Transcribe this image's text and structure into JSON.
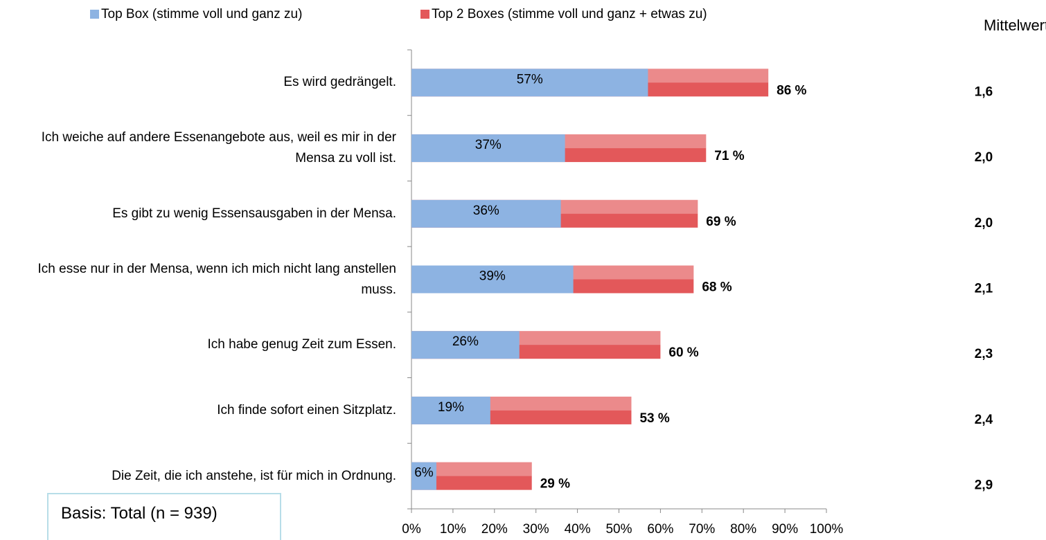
{
  "chart_data": {
    "type": "bar",
    "orientation": "horizontal",
    "categories": [
      "Es wird gedrängelt.",
      "Ich weiche auf andere Essenangebote aus, weil es mir in der Mensa zu voll ist.",
      "Es gibt zu wenig Essensausgaben in der Mensa.",
      "Ich esse nur in der Mensa, wenn ich mich nicht lang anstellen muss.",
      "Ich habe genug Zeit zum Essen.",
      "Ich finde sofort einen Sitzplatz.",
      "Die Zeit, die ich anstehe, ist für mich in Ordnung."
    ],
    "series": [
      {
        "name": "Top Box (stimme voll und ganz zu)",
        "color": "#8db3e2",
        "values": [
          57,
          37,
          36,
          39,
          26,
          19,
          6
        ],
        "value_labels": [
          "57%",
          "37%",
          "36%",
          "39%",
          "26%",
          "19%",
          "6%"
        ]
      },
      {
        "name": "Top 2 Boxes (stimme voll und ganz + etwas zu)",
        "color": "#e3585a",
        "values": [
          86,
          71,
          69,
          68,
          60,
          53,
          29
        ],
        "value_labels": [
          "86 %",
          "71 %",
          "69 %",
          "68 %",
          "60 %",
          "53 %",
          "29 %"
        ]
      }
    ],
    "xlim": [
      0,
      100
    ],
    "xticks": [
      {
        "value": 0,
        "label": "0%"
      },
      {
        "value": 10,
        "label": "10%"
      },
      {
        "value": 20,
        "label": "20%"
      },
      {
        "value": 30,
        "label": "30%"
      },
      {
        "value": 40,
        "label": "40%"
      },
      {
        "value": 50,
        "label": "50%"
      },
      {
        "value": 60,
        "label": "60%"
      },
      {
        "value": 70,
        "label": "70%"
      },
      {
        "value": 80,
        "label": "80%"
      },
      {
        "value": 90,
        "label": "90%"
      },
      {
        "value": 100,
        "label": "100%"
      }
    ],
    "means": {
      "title": "Mittelwert",
      "labels": [
        "1,6",
        "2,0",
        "2,0",
        "2,1",
        "2,3",
        "2,4",
        "2,9"
      ]
    },
    "annotation": "Basis: Total (n = 939)",
    "legend": "top"
  }
}
